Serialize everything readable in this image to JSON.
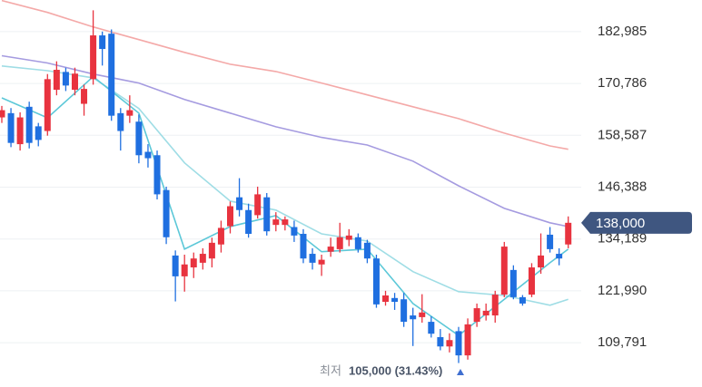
{
  "chart_data": {
    "type": "candlestick",
    "up_color": "#e8333f",
    "down_color": "#1f6fe0",
    "grid": true,
    "ylim": [
      100000,
      190000
    ],
    "yticks": [
      {
        "value": 109791,
        "label": "109,791"
      },
      {
        "value": 121990,
        "label": "121,990"
      },
      {
        "value": 134189,
        "label": "134,189"
      },
      {
        "value": 146388,
        "label": "146,388"
      },
      {
        "value": 158587,
        "label": "158,587"
      },
      {
        "value": 170786,
        "label": "170,786"
      },
      {
        "value": 182985,
        "label": "182,985"
      }
    ],
    "open": [
      162800,
      163800,
      156500,
      165300,
      160700,
      159600,
      169300,
      173500,
      169300,
      166000,
      171800,
      182100,
      182500,
      163800,
      163200,
      161800,
      154700,
      153900,
      145700,
      130300,
      125400,
      127500,
      128600,
      129600,
      132900,
      137200,
      144000,
      141000,
      139800,
      144000,
      137500,
      137500,
      137000,
      135400,
      130700,
      128200,
      131200,
      131800,
      134000,
      134600,
      133300,
      129600,
      119400,
      120300,
      120000,
      116200,
      115800,
      114700,
      111100,
      108900,
      112500,
      106800,
      114700,
      116200,
      116200,
      121100,
      126900,
      120500,
      121100,
      127500,
      135200,
      130700,
      132900
    ],
    "high": [
      165500,
      165000,
      164000,
      166500,
      161500,
      173000,
      176000,
      174500,
      174500,
      170500,
      188000,
      183000,
      183500,
      165000,
      168000,
      163500,
      156500,
      155000,
      146500,
      131500,
      130500,
      131000,
      132000,
      134500,
      138500,
      143000,
      148500,
      142500,
      146500,
      145000,
      140500,
      139500,
      138500,
      136500,
      132000,
      130500,
      134500,
      138000,
      136500,
      135500,
      134000,
      130500,
      122000,
      121500,
      121500,
      118000,
      121200,
      116000,
      113000,
      112000,
      113500,
      115500,
      119000,
      119000,
      122000,
      133500,
      128000,
      121000,
      128500,
      135500,
      137000,
      132000,
      139500
    ],
    "low": [
      161500,
      155800,
      155000,
      155500,
      156000,
      158500,
      168000,
      169000,
      168000,
      163200,
      170500,
      175000,
      162000,
      155000,
      161500,
      152000,
      151000,
      143500,
      133000,
      119500,
      121800,
      125000,
      127000,
      127500,
      131000,
      135500,
      139500,
      134500,
      139000,
      135000,
      136000,
      136200,
      133500,
      128500,
      127000,
      125500,
      130000,
      131000,
      132500,
      131000,
      128500,
      118000,
      118500,
      117500,
      113500,
      109000,
      114500,
      111000,
      108000,
      107500,
      105000,
      105800,
      113500,
      115000,
      114500,
      120500,
      120000,
      118500,
      120500,
      126000,
      131000,
      128000,
      132000
    ],
    "close": [
      164500,
      156800,
      162800,
      156800,
      157500,
      171800,
      174000,
      170300,
      173100,
      169500,
      182100,
      178900,
      163200,
      159600,
      164500,
      153900,
      153200,
      144700,
      134600,
      125400,
      128200,
      129600,
      130700,
      133300,
      136800,
      141900,
      141000,
      135400,
      144700,
      136000,
      138800,
      138800,
      135000,
      129600,
      128600,
      129300,
      132400,
      134600,
      135000,
      131800,
      129600,
      118800,
      120900,
      119400,
      114700,
      115300,
      116900,
      111900,
      108900,
      110400,
      106800,
      114100,
      117900,
      117300,
      121100,
      132400,
      120500,
      119000,
      127500,
      130300,
      131800,
      129600,
      138000
    ],
    "moving_averages": [
      {
        "color": "#f4a9a8",
        "x": [
          0,
          5,
          10,
          15,
          20,
          25,
          30,
          35,
          40,
          45,
          50,
          55,
          60,
          62
        ],
        "values": [
          190300,
          187500,
          184100,
          181100,
          178100,
          175300,
          173600,
          170900,
          168100,
          165300,
          162500,
          159100,
          156100,
          155300
        ]
      },
      {
        "color": "#a59be0",
        "x": [
          0,
          5,
          10,
          15,
          20,
          25,
          30,
          35,
          40,
          45,
          50,
          55,
          60,
          62
        ],
        "values": [
          177300,
          175600,
          173000,
          170900,
          167000,
          163800,
          160600,
          158100,
          156300,
          152500,
          146700,
          141400,
          138000,
          137100
        ]
      },
      {
        "color": "#9fdde5",
        "x": [
          0,
          5,
          10,
          15,
          20,
          25,
          30,
          35,
          40,
          45,
          50,
          55,
          60,
          62
        ],
        "values": [
          174900,
          173800,
          172100,
          164900,
          152100,
          143100,
          141000,
          135400,
          133700,
          126500,
          121800,
          120900,
          118600,
          120000
        ]
      },
      {
        "color": "#5cc8d8",
        "x": [
          0,
          5,
          10,
          15,
          20,
          25,
          30,
          35,
          40,
          45,
          50,
          55,
          60,
          62
        ],
        "values": [
          167400,
          162700,
          172400,
          163800,
          131800,
          137100,
          139700,
          131200,
          131800,
          119000,
          111500,
          120000,
          128600,
          131800
        ]
      }
    ],
    "current_price": {
      "value": 138000,
      "label": "138,000"
    },
    "low_annotation": {
      "prefix": "최저",
      "value": 105000,
      "label": "105,000 (31.43%)"
    }
  }
}
